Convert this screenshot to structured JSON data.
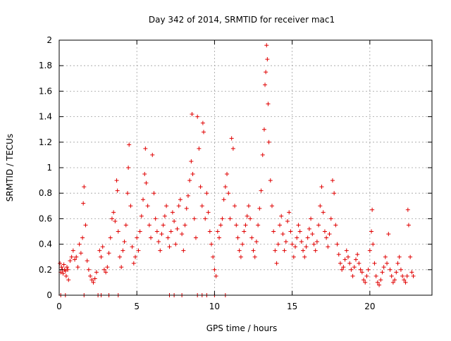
{
  "chart_data": {
    "type": "scatter",
    "title": "Day 342 of 2014, SRMTID for receiver mac1",
    "xlabel": "GPS time / hours",
    "ylabel": "SRMTID / TECUs",
    "xlim": [
      0,
      24
    ],
    "ylim": [
      0,
      2
    ],
    "x_ticks": [
      0,
      5,
      10,
      15,
      20
    ],
    "x_tick_labels": [
      "0",
      "5",
      "10",
      "15",
      "20"
    ],
    "y_ticks": [
      0,
      0.2,
      0.4,
      0.6,
      0.8,
      1,
      1.2,
      1.4,
      1.6,
      1.8,
      2
    ],
    "y_tick_labels": [
      "0",
      "0.2",
      "0.4",
      "0.6",
      "0.8",
      "1",
      "1.2",
      "1.4",
      "1.6",
      "1.8",
      "2"
    ],
    "grid": true,
    "marker": "+",
    "marker_color": "#e00000",
    "series": [
      {
        "name": "SRMTID",
        "points": [
          [
            0.05,
            0.25
          ],
          [
            0.1,
            0.18
          ],
          [
            0.15,
            0.22
          ],
          [
            0.2,
            0.2
          ],
          [
            0.25,
            0.17
          ],
          [
            0.3,
            0.24
          ],
          [
            0.35,
            0.2
          ],
          [
            0.4,
            0.19
          ],
          [
            0.45,
            0.15
          ],
          [
            0.5,
            0.22
          ],
          [
            0.55,
            0.2
          ],
          [
            0.6,
            0.12
          ],
          [
            0.7,
            0.27
          ],
          [
            0.8,
            0.3
          ],
          [
            0.9,
            0.35
          ],
          [
            1.0,
            0.28
          ],
          [
            1.1,
            0.3
          ],
          [
            1.2,
            0.22
          ],
          [
            1.3,
            0.4
          ],
          [
            1.4,
            0.33
          ],
          [
            1.5,
            0.45
          ],
          [
            1.55,
            0.72
          ],
          [
            1.6,
            0.85
          ],
          [
            1.7,
            0.55
          ],
          [
            1.8,
            0.27
          ],
          [
            1.9,
            0.2
          ],
          [
            2.0,
            0.15
          ],
          [
            2.1,
            0.12
          ],
          [
            2.2,
            0.1
          ],
          [
            2.3,
            0.13
          ],
          [
            2.4,
            0.18
          ],
          [
            2.6,
            0.35
          ],
          [
            2.7,
            0.3
          ],
          [
            2.8,
            0.38
          ],
          [
            2.9,
            0.2
          ],
          [
            3.0,
            0.18
          ],
          [
            3.1,
            0.22
          ],
          [
            3.2,
            0.33
          ],
          [
            3.3,
            0.45
          ],
          [
            3.4,
            0.6
          ],
          [
            3.5,
            0.65
          ],
          [
            3.6,
            0.58
          ],
          [
            3.7,
            0.9
          ],
          [
            3.75,
            0.82
          ],
          [
            3.8,
            0.5
          ],
          [
            3.9,
            0.3
          ],
          [
            4.0,
            0.22
          ],
          [
            4.1,
            0.35
          ],
          [
            4.2,
            0.42
          ],
          [
            4.3,
            0.55
          ],
          [
            4.4,
            0.8
          ],
          [
            4.45,
            1.0
          ],
          [
            4.5,
            1.18
          ],
          [
            4.6,
            0.7
          ],
          [
            4.7,
            0.38
          ],
          [
            4.8,
            0.25
          ],
          [
            4.9,
            0.3
          ],
          [
            5.0,
            0.45
          ],
          [
            5.1,
            0.35
          ],
          [
            5.2,
            0.5
          ],
          [
            5.3,
            0.62
          ],
          [
            5.4,
            0.75
          ],
          [
            5.5,
            0.95
          ],
          [
            5.55,
            1.15
          ],
          [
            5.6,
            0.88
          ],
          [
            5.7,
            0.7
          ],
          [
            5.8,
            0.55
          ],
          [
            5.9,
            0.45
          ],
          [
            6.0,
            1.1
          ],
          [
            6.1,
            0.8
          ],
          [
            6.2,
            0.6
          ],
          [
            6.3,
            0.5
          ],
          [
            6.4,
            0.42
          ],
          [
            6.5,
            0.35
          ],
          [
            6.6,
            0.48
          ],
          [
            6.7,
            0.55
          ],
          [
            6.8,
            0.62
          ],
          [
            6.9,
            0.7
          ],
          [
            7.0,
            0.45
          ],
          [
            7.1,
            0.38
          ],
          [
            7.2,
            0.5
          ],
          [
            7.3,
            0.65
          ],
          [
            7.4,
            0.58
          ],
          [
            7.5,
            0.4
          ],
          [
            7.6,
            0.52
          ],
          [
            7.7,
            0.7
          ],
          [
            7.8,
            0.75
          ],
          [
            7.9,
            0.48
          ],
          [
            8.0,
            0.35
          ],
          [
            8.1,
            0.55
          ],
          [
            8.2,
            0.68
          ],
          [
            8.3,
            0.78
          ],
          [
            8.4,
            0.9
          ],
          [
            8.5,
            1.05
          ],
          [
            8.55,
            1.42
          ],
          [
            8.6,
            0.95
          ],
          [
            8.7,
            0.6
          ],
          [
            8.8,
            0.45
          ],
          [
            8.9,
            1.4
          ],
          [
            9.0,
            1.15
          ],
          [
            9.1,
            0.85
          ],
          [
            9.2,
            0.7
          ],
          [
            9.25,
            1.35
          ],
          [
            9.3,
            1.28
          ],
          [
            9.4,
            0.6
          ],
          [
            9.5,
            0.8
          ],
          [
            9.6,
            0.65
          ],
          [
            9.7,
            0.5
          ],
          [
            9.8,
            0.4
          ],
          [
            9.9,
            0.3
          ],
          [
            10.0,
            0.2
          ],
          [
            10.1,
            0.15
          ],
          [
            10.2,
            0.5
          ],
          [
            10.3,
            0.45
          ],
          [
            10.4,
            0.55
          ],
          [
            10.5,
            0.6
          ],
          [
            10.6,
            0.75
          ],
          [
            10.7,
            0.85
          ],
          [
            10.8,
            0.95
          ],
          [
            10.9,
            0.8
          ],
          [
            11.0,
            0.6
          ],
          [
            11.1,
            1.23
          ],
          [
            11.2,
            1.15
          ],
          [
            11.3,
            0.7
          ],
          [
            11.4,
            0.55
          ],
          [
            11.5,
            0.45
          ],
          [
            11.6,
            0.35
          ],
          [
            11.7,
            0.3
          ],
          [
            11.8,
            0.4
          ],
          [
            11.9,
            0.5
          ],
          [
            12.0,
            0.55
          ],
          [
            12.1,
            0.62
          ],
          [
            12.2,
            0.7
          ],
          [
            12.3,
            0.6
          ],
          [
            12.4,
            0.45
          ],
          [
            12.5,
            0.35
          ],
          [
            12.6,
            0.3
          ],
          [
            12.7,
            0.42
          ],
          [
            12.8,
            0.55
          ],
          [
            12.9,
            0.68
          ],
          [
            13.0,
            0.82
          ],
          [
            13.1,
            1.1
          ],
          [
            13.2,
            1.3
          ],
          [
            13.25,
            1.65
          ],
          [
            13.3,
            1.75
          ],
          [
            13.35,
            1.96
          ],
          [
            13.4,
            1.85
          ],
          [
            13.45,
            1.5
          ],
          [
            13.5,
            1.2
          ],
          [
            13.6,
            0.9
          ],
          [
            13.7,
            0.7
          ],
          [
            13.8,
            0.5
          ],
          [
            13.9,
            0.35
          ],
          [
            14.0,
            0.25
          ],
          [
            14.1,
            0.4
          ],
          [
            14.2,
            0.55
          ],
          [
            14.3,
            0.62
          ],
          [
            14.4,
            0.48
          ],
          [
            14.5,
            0.35
          ],
          [
            14.6,
            0.42
          ],
          [
            14.7,
            0.58
          ],
          [
            14.8,
            0.65
          ],
          [
            14.9,
            0.5
          ],
          [
            15.0,
            0.4
          ],
          [
            15.1,
            0.3
          ],
          [
            15.2,
            0.38
          ],
          [
            15.3,
            0.45
          ],
          [
            15.4,
            0.55
          ],
          [
            15.5,
            0.5
          ],
          [
            15.6,
            0.42
          ],
          [
            15.7,
            0.35
          ],
          [
            15.8,
            0.3
          ],
          [
            15.9,
            0.38
          ],
          [
            16.0,
            0.45
          ],
          [
            16.1,
            0.52
          ],
          [
            16.2,
            0.6
          ],
          [
            16.3,
            0.48
          ],
          [
            16.4,
            0.4
          ],
          [
            16.5,
            0.35
          ],
          [
            16.6,
            0.42
          ],
          [
            16.7,
            0.55
          ],
          [
            16.8,
            0.7
          ],
          [
            16.9,
            0.85
          ],
          [
            17.0,
            0.65
          ],
          [
            17.1,
            0.5
          ],
          [
            17.2,
            0.45
          ],
          [
            17.3,
            0.38
          ],
          [
            17.4,
            0.48
          ],
          [
            17.5,
            0.6
          ],
          [
            17.6,
            0.9
          ],
          [
            17.7,
            0.8
          ],
          [
            17.8,
            0.55
          ],
          [
            17.9,
            0.4
          ],
          [
            18.0,
            0.32
          ],
          [
            18.1,
            0.25
          ],
          [
            18.2,
            0.2
          ],
          [
            18.3,
            0.22
          ],
          [
            18.4,
            0.28
          ],
          [
            18.5,
            0.35
          ],
          [
            18.6,
            0.3
          ],
          [
            18.7,
            0.25
          ],
          [
            18.8,
            0.2
          ],
          [
            18.9,
            0.15
          ],
          [
            19.0,
            0.22
          ],
          [
            19.1,
            0.28
          ],
          [
            19.2,
            0.32
          ],
          [
            19.3,
            0.25
          ],
          [
            19.4,
            0.2
          ],
          [
            19.5,
            0.18
          ],
          [
            19.6,
            0.12
          ],
          [
            19.7,
            0.1
          ],
          [
            19.8,
            0.15
          ],
          [
            19.9,
            0.2
          ],
          [
            20.0,
            0.35
          ],
          [
            20.1,
            0.5
          ],
          [
            20.15,
            0.67
          ],
          [
            20.2,
            0.4
          ],
          [
            20.3,
            0.25
          ],
          [
            20.4,
            0.15
          ],
          [
            20.5,
            0.1
          ],
          [
            20.6,
            0.08
          ],
          [
            20.7,
            0.12
          ],
          [
            20.8,
            0.18
          ],
          [
            20.9,
            0.22
          ],
          [
            21.0,
            0.3
          ],
          [
            21.1,
            0.25
          ],
          [
            21.2,
            0.48
          ],
          [
            21.3,
            0.2
          ],
          [
            21.4,
            0.15
          ],
          [
            21.5,
            0.1
          ],
          [
            21.6,
            0.12
          ],
          [
            21.7,
            0.18
          ],
          [
            21.8,
            0.25
          ],
          [
            21.9,
            0.3
          ],
          [
            22.0,
            0.2
          ],
          [
            22.1,
            0.15
          ],
          [
            22.2,
            0.12
          ],
          [
            22.3,
            0.1
          ],
          [
            22.4,
            0.15
          ],
          [
            22.45,
            0.67
          ],
          [
            22.5,
            0.55
          ],
          [
            22.6,
            0.3
          ],
          [
            22.7,
            0.18
          ],
          [
            22.8,
            0.15
          ],
          [
            0.1,
            0.0
          ],
          [
            0.4,
            0.0
          ],
          [
            1.6,
            0.0
          ],
          [
            2.5,
            0.0
          ],
          [
            2.7,
            0.0
          ],
          [
            3.2,
            0.0
          ],
          [
            3.8,
            0.0
          ],
          [
            7.1,
            0.0
          ],
          [
            7.4,
            0.0
          ],
          [
            7.9,
            0.0
          ],
          [
            8.9,
            0.0
          ],
          [
            9.2,
            0.0
          ],
          [
            9.5,
            0.0
          ],
          [
            10.0,
            0.0
          ],
          [
            10.7,
            0.0
          ]
        ]
      }
    ]
  }
}
